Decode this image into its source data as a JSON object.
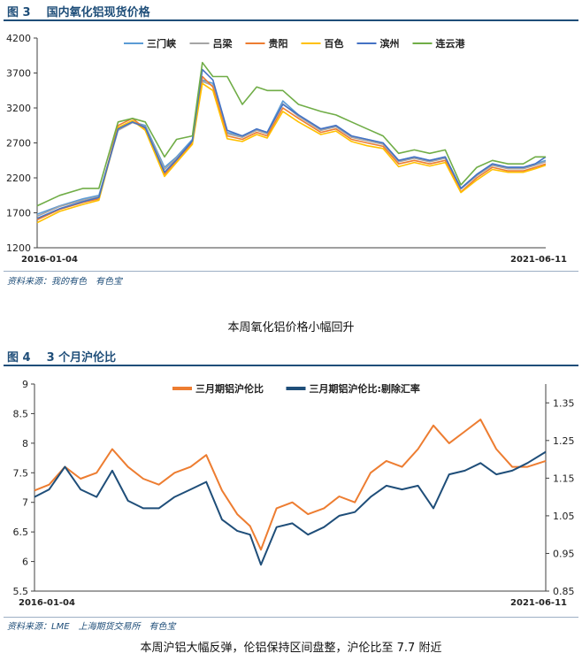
{
  "figure3": {
    "label": "图 3",
    "title": "国内氧化铝现货价格",
    "source": [
      "资料来源：我的有色",
      "有色宝"
    ],
    "caption": "本周氧化铝价格小幅回升"
  },
  "figure4": {
    "label": "图 4",
    "title": "3 个月沪伦比",
    "source": [
      "资料来源：LME",
      "上海期货交易所",
      "有色宝"
    ],
    "caption": "本周沪铝大幅反弹，伦铝保持区间盘整，沪伦比至 7.7 附近"
  },
  "chart_data": [
    {
      "type": "line",
      "title": "国内氧化铝现货价格",
      "x_start": "2016-01-04",
      "x_end": "2021-06-11",
      "x_tick_labels": [
        "2016-01-04",
        "2021-06-11"
      ],
      "ylim": [
        1200,
        4200
      ],
      "yticks": [
        1200,
        1700,
        2200,
        2700,
        3200,
        3700,
        4200
      ],
      "grid": false,
      "legend": "top",
      "series": [
        {
          "name": "三门峡",
          "color": "#5b9bd5",
          "x": [
            "2016-01-04",
            "2016-04-01",
            "2016-07-01",
            "2016-09-01",
            "2016-11-15",
            "2017-01-10",
            "2017-03-01",
            "2017-05-15",
            "2017-07-01",
            "2017-09-01",
            "2017-10-10",
            "2017-11-20",
            "2018-01-15",
            "2018-03-15",
            "2018-05-10",
            "2018-06-20",
            "2018-08-20",
            "2018-10-20",
            "2019-01-15",
            "2019-03-15",
            "2019-05-15",
            "2019-07-15",
            "2019-09-15",
            "2019-11-15",
            "2020-01-15",
            "2020-03-15",
            "2020-05-15",
            "2020-07-15",
            "2020-09-15",
            "2020-11-15",
            "2021-01-15",
            "2021-03-15",
            "2021-05-01",
            "2021-06-11"
          ],
          "values": [
            1680,
            1800,
            1900,
            1950,
            2900,
            3000,
            2950,
            2350,
            2500,
            2750,
            3600,
            3550,
            2850,
            2800,
            2900,
            2850,
            3300,
            3100,
            2900,
            2950,
            2800,
            2750,
            2700,
            2450,
            2500,
            2450,
            2500,
            2050,
            2250,
            2400,
            2350,
            2350,
            2400,
            2450
          ]
        },
        {
          "name": "吕梁",
          "color": "#a5a5a5",
          "x": [
            "2016-01-04",
            "2016-04-01",
            "2016-07-01",
            "2016-09-01",
            "2016-11-15",
            "2017-01-10",
            "2017-03-01",
            "2017-05-15",
            "2017-07-01",
            "2017-09-01",
            "2017-10-10",
            "2017-11-20",
            "2018-01-15",
            "2018-03-15",
            "2018-05-10",
            "2018-06-20",
            "2018-08-20",
            "2018-10-20",
            "2019-01-15",
            "2019-03-15",
            "2019-05-15",
            "2019-07-15",
            "2019-09-15",
            "2019-11-15",
            "2020-01-15",
            "2020-03-15",
            "2020-05-15",
            "2020-07-15",
            "2020-09-15",
            "2020-11-15",
            "2021-01-15",
            "2021-03-15",
            "2021-05-01",
            "2021-06-11"
          ],
          "values": [
            1650,
            1790,
            1880,
            1930,
            2880,
            2990,
            2930,
            2320,
            2480,
            2720,
            3580,
            3520,
            2830,
            2780,
            2880,
            2830,
            3260,
            3080,
            2880,
            2930,
            2780,
            2730,
            2680,
            2430,
            2480,
            2430,
            2480,
            2040,
            2230,
            2380,
            2330,
            2330,
            2380,
            2430
          ]
        },
        {
          "name": "贵阳",
          "color": "#ed7d31",
          "x": [
            "2016-01-04",
            "2016-04-01",
            "2016-07-01",
            "2016-09-01",
            "2016-11-15",
            "2017-01-10",
            "2017-03-01",
            "2017-05-15",
            "2017-07-01",
            "2017-09-01",
            "2017-10-10",
            "2017-11-20",
            "2018-01-15",
            "2018-03-15",
            "2018-05-10",
            "2018-06-20",
            "2018-08-20",
            "2018-10-20",
            "2019-01-15",
            "2019-03-15",
            "2019-05-15",
            "2019-07-15",
            "2019-09-15",
            "2019-11-15",
            "2020-01-15",
            "2020-03-15",
            "2020-05-15",
            "2020-07-15",
            "2020-09-15",
            "2020-11-15",
            "2021-01-15",
            "2021-03-15",
            "2021-05-01",
            "2021-06-11"
          ],
          "values": [
            1600,
            1750,
            1850,
            1900,
            2950,
            3050,
            2900,
            2250,
            2450,
            2700,
            3650,
            3500,
            2800,
            2750,
            2850,
            2800,
            3200,
            3050,
            2850,
            2900,
            2750,
            2700,
            2650,
            2400,
            2450,
            2400,
            2450,
            2000,
            2200,
            2350,
            2300,
            2300,
            2350,
            2400
          ]
        },
        {
          "name": "百色",
          "color": "#ffc000",
          "x": [
            "2016-01-04",
            "2016-04-01",
            "2016-07-01",
            "2016-09-01",
            "2016-11-15",
            "2017-01-10",
            "2017-03-01",
            "2017-05-15",
            "2017-07-01",
            "2017-09-01",
            "2017-10-10",
            "2017-11-20",
            "2018-01-15",
            "2018-03-15",
            "2018-05-10",
            "2018-06-20",
            "2018-08-20",
            "2018-10-20",
            "2019-01-15",
            "2019-03-15",
            "2019-05-15",
            "2019-07-15",
            "2019-09-15",
            "2019-11-15",
            "2020-01-15",
            "2020-03-15",
            "2020-05-15",
            "2020-07-15",
            "2020-09-15",
            "2020-11-15",
            "2021-01-15",
            "2021-03-15",
            "2021-05-01",
            "2021-06-11"
          ],
          "values": [
            1560,
            1720,
            1820,
            1880,
            2920,
            3020,
            2880,
            2220,
            2420,
            2680,
            3550,
            3450,
            2760,
            2720,
            2820,
            2770,
            3150,
            3000,
            2820,
            2870,
            2720,
            2660,
            2620,
            2360,
            2420,
            2370,
            2420,
            1990,
            2170,
            2320,
            2280,
            2280,
            2330,
            2380
          ]
        },
        {
          "name": "滨州",
          "color": "#4472c4",
          "x": [
            "2016-01-04",
            "2016-04-01",
            "2016-07-01",
            "2016-09-01",
            "2016-11-15",
            "2017-01-10",
            "2017-03-01",
            "2017-05-15",
            "2017-07-01",
            "2017-09-01",
            "2017-10-10",
            "2017-11-20",
            "2018-01-15",
            "2018-03-15",
            "2018-05-10",
            "2018-06-20",
            "2018-08-20",
            "2018-10-20",
            "2019-01-15",
            "2019-03-15",
            "2019-05-15",
            "2019-07-15",
            "2019-09-15",
            "2019-11-15",
            "2020-01-15",
            "2020-03-15",
            "2020-05-15",
            "2020-07-15",
            "2020-09-15",
            "2020-11-15",
            "2021-01-15",
            "2021-03-15",
            "2021-05-01",
            "2021-06-11"
          ],
          "values": [
            1620,
            1760,
            1860,
            1920,
            2900,
            3000,
            2920,
            2280,
            2460,
            2730,
            3750,
            3600,
            2880,
            2800,
            2900,
            2850,
            3250,
            3100,
            2900,
            2950,
            2800,
            2750,
            2700,
            2450,
            2500,
            2450,
            2500,
            2050,
            2250,
            2400,
            2350,
            2350,
            2400,
            2500
          ]
        },
        {
          "name": "连云港",
          "color": "#70ad47",
          "x": [
            "2016-01-04",
            "2016-04-01",
            "2016-07-01",
            "2016-09-01",
            "2016-11-15",
            "2017-01-10",
            "2017-03-01",
            "2017-05-15",
            "2017-07-01",
            "2017-09-01",
            "2017-10-10",
            "2017-11-20",
            "2018-01-15",
            "2018-03-15",
            "2018-05-10",
            "2018-06-20",
            "2018-08-20",
            "2018-10-20",
            "2019-01-15",
            "2019-03-15",
            "2019-05-15",
            "2019-07-15",
            "2019-09-15",
            "2019-11-15",
            "2020-01-15",
            "2020-03-15",
            "2020-05-15",
            "2020-07-15",
            "2020-09-15",
            "2020-11-15",
            "2021-01-15",
            "2021-03-15",
            "2021-05-01",
            "2021-06-11"
          ],
          "values": [
            1800,
            1950,
            2050,
            2050,
            3000,
            3050,
            3000,
            2500,
            2750,
            2800,
            3850,
            3650,
            3650,
            3250,
            3500,
            3450,
            3450,
            3250,
            3150,
            3100,
            3000,
            2900,
            2800,
            2550,
            2600,
            2550,
            2600,
            2100,
            2350,
            2450,
            2400,
            2400,
            2500,
            2500
          ]
        }
      ]
    },
    {
      "type": "line",
      "title": "3 个月沪伦比",
      "x_start": "2016-01-04",
      "x_end": "2021-06-11",
      "x_tick_labels": [
        "2016-01-04",
        "2021-06-11"
      ],
      "ylim": [
        5.5,
        9
      ],
      "yticks": [
        5.5,
        6,
        6.5,
        7,
        7.5,
        8,
        8.5,
        9
      ],
      "y2lim": [
        0.85,
        1.4
      ],
      "y2ticks": [
        0.85,
        0.95,
        1.05,
        1.15,
        1.25,
        1.35
      ],
      "grid": false,
      "legend": "top",
      "series": [
        {
          "name": "三月期铝沪伦比",
          "axis": "left",
          "color": "#ed7d31",
          "x": [
            "2016-01-04",
            "2016-03-01",
            "2016-05-01",
            "2016-07-01",
            "2016-09-01",
            "2016-11-01",
            "2017-01-01",
            "2017-03-01",
            "2017-05-01",
            "2017-07-01",
            "2017-09-01",
            "2017-11-01",
            "2018-01-01",
            "2018-03-01",
            "2018-04-20",
            "2018-06-01",
            "2018-08-01",
            "2018-10-01",
            "2018-12-01",
            "2019-02-01",
            "2019-04-01",
            "2019-06-01",
            "2019-08-01",
            "2019-10-01",
            "2019-12-01",
            "2020-02-01",
            "2020-04-01",
            "2020-06-01",
            "2020-08-01",
            "2020-10-01",
            "2020-12-01",
            "2021-02-01",
            "2021-04-01",
            "2021-06-11"
          ],
          "values": [
            7.2,
            7.3,
            7.6,
            7.4,
            7.5,
            7.9,
            7.6,
            7.4,
            7.3,
            7.5,
            7.6,
            7.8,
            7.2,
            6.8,
            6.6,
            6.2,
            6.9,
            7.0,
            6.8,
            6.9,
            7.1,
            7.0,
            7.5,
            7.7,
            7.6,
            7.9,
            8.3,
            8.0,
            8.2,
            8.4,
            7.9,
            7.6,
            7.6,
            7.7
          ]
        },
        {
          "name": "三月期铝沪伦比:剔除汇率",
          "axis": "right",
          "color": "#1f4e79",
          "x": [
            "2016-01-04",
            "2016-03-01",
            "2016-05-01",
            "2016-07-01",
            "2016-09-01",
            "2016-11-01",
            "2017-01-01",
            "2017-03-01",
            "2017-05-01",
            "2017-07-01",
            "2017-09-01",
            "2017-11-01",
            "2018-01-01",
            "2018-03-01",
            "2018-04-20",
            "2018-06-01",
            "2018-08-01",
            "2018-10-01",
            "2018-12-01",
            "2019-02-01",
            "2019-04-01",
            "2019-06-01",
            "2019-08-01",
            "2019-10-01",
            "2019-12-01",
            "2020-02-01",
            "2020-04-01",
            "2020-06-01",
            "2020-08-01",
            "2020-10-01",
            "2020-12-01",
            "2021-02-01",
            "2021-04-01",
            "2021-06-11"
          ],
          "values": [
            1.1,
            1.12,
            1.18,
            1.12,
            1.1,
            1.17,
            1.09,
            1.07,
            1.07,
            1.1,
            1.12,
            1.14,
            1.04,
            1.01,
            1.0,
            0.92,
            1.02,
            1.03,
            1.0,
            1.02,
            1.05,
            1.06,
            1.1,
            1.13,
            1.12,
            1.13,
            1.07,
            1.16,
            1.17,
            1.19,
            1.16,
            1.17,
            1.19,
            1.22
          ]
        }
      ]
    }
  ]
}
